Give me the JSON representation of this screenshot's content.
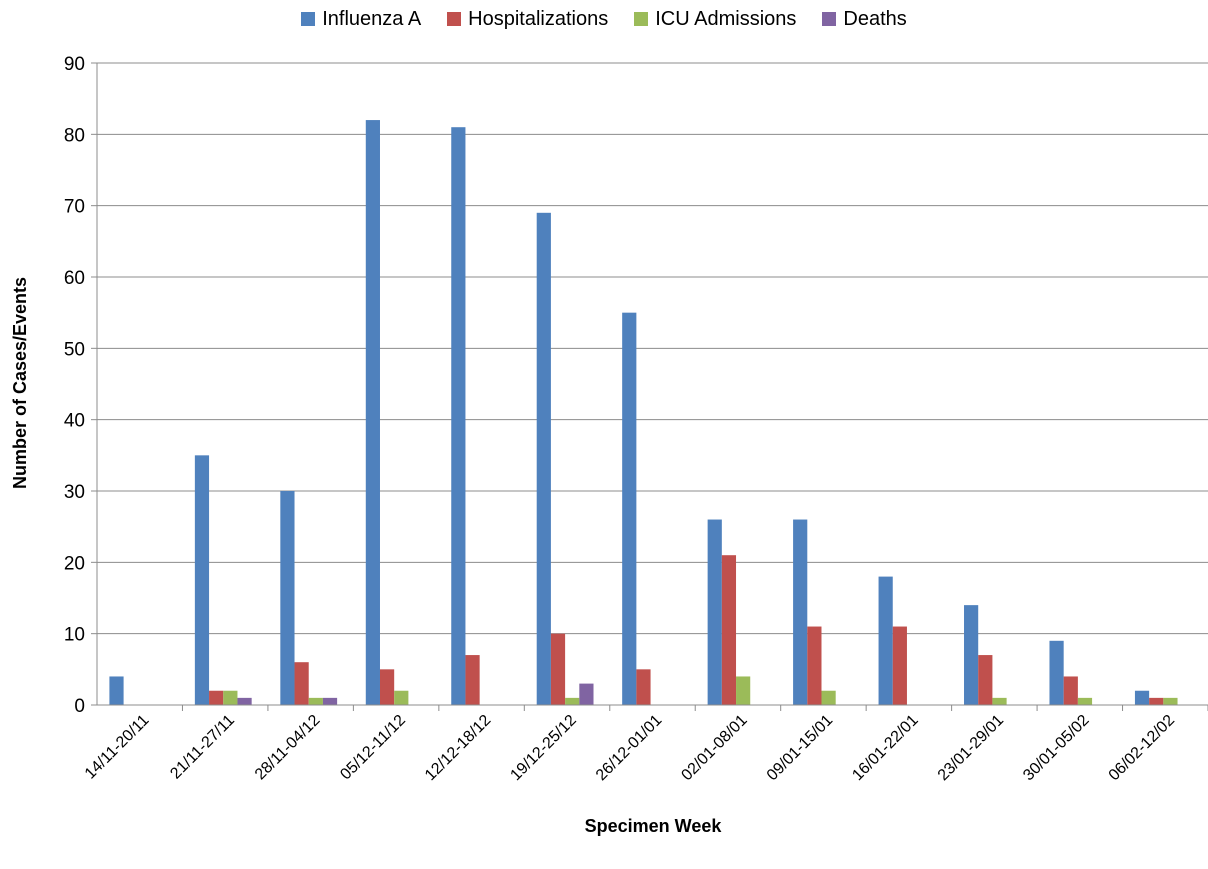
{
  "chart_data": {
    "type": "bar",
    "title": "",
    "xlabel": "Specimen Week",
    "ylabel": "Number of Cases/Events",
    "ylim": [
      0,
      90
    ],
    "yticks": [
      0,
      10,
      20,
      30,
      40,
      50,
      60,
      70,
      80,
      90
    ],
    "grid": true,
    "legend_position": "top",
    "categories": [
      "14/11-20/11",
      "21/11-27/11",
      "28/11-04/12",
      "05/12-11/12",
      "12/12-18/12",
      "19/12-25/12",
      "26/12-01/01",
      "02/01-08/01",
      "09/01-15/01",
      "16/01-22/01",
      "23/01-29/01",
      "30/01-05/02",
      "06/02-12/02"
    ],
    "series": [
      {
        "name": "Influenza A",
        "color": "#4F81BD",
        "values": [
          4,
          35,
          30,
          82,
          81,
          69,
          55,
          26,
          26,
          18,
          14,
          9,
          2
        ]
      },
      {
        "name": "Hospitalizations",
        "color": "#C0504D",
        "values": [
          0,
          2,
          6,
          5,
          7,
          10,
          5,
          21,
          11,
          11,
          7,
          4,
          1
        ]
      },
      {
        "name": "ICU Admissions",
        "color": "#9BBB59",
        "values": [
          0,
          2,
          1,
          2,
          0,
          1,
          0,
          4,
          2,
          0,
          1,
          1,
          1
        ]
      },
      {
        "name": "Deaths",
        "color": "#8064A2",
        "values": [
          0,
          1,
          1,
          0,
          0,
          3,
          0,
          0,
          0,
          0,
          0,
          0,
          0
        ]
      }
    ]
  }
}
